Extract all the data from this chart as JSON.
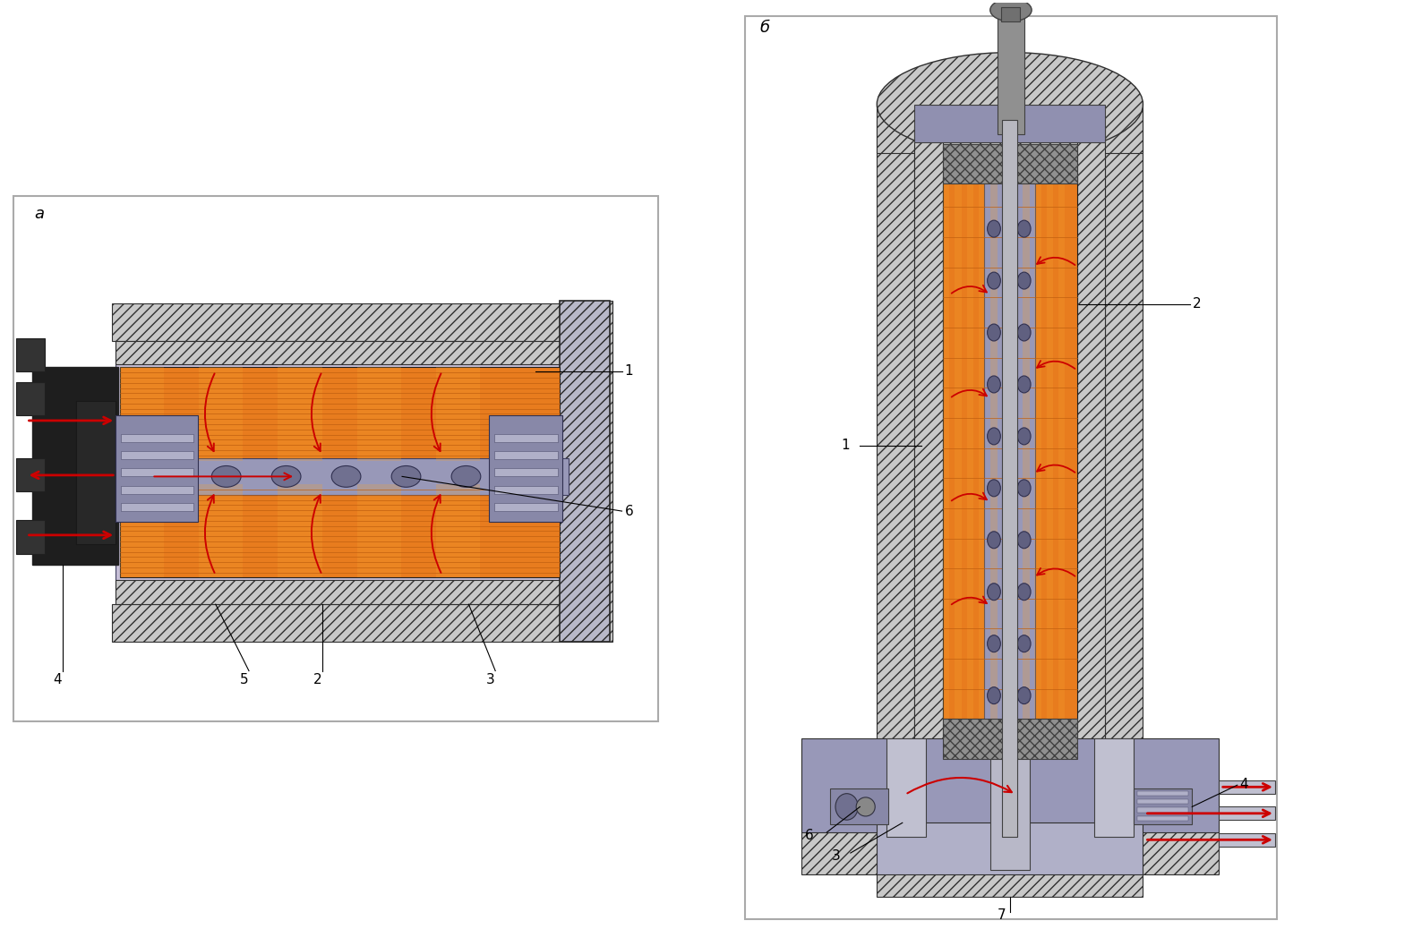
{
  "bg_color": "#ffffff",
  "panel_a_label": "а",
  "panel_b_label": "б",
  "orange_color": "#e87c1e",
  "body_fill": "#c8c0d8",
  "gray_light": "#c8c8c8",
  "gray_mid": "#9090b0",
  "gray_dark": "#8888a8",
  "red_arrow": "#cc0000",
  "border_color": "#202020",
  "hatch_fc": "#c8c8c8",
  "inner_tube": "#9090b0",
  "hole_fc": "#606080",
  "spring_fc": "#9090b0"
}
